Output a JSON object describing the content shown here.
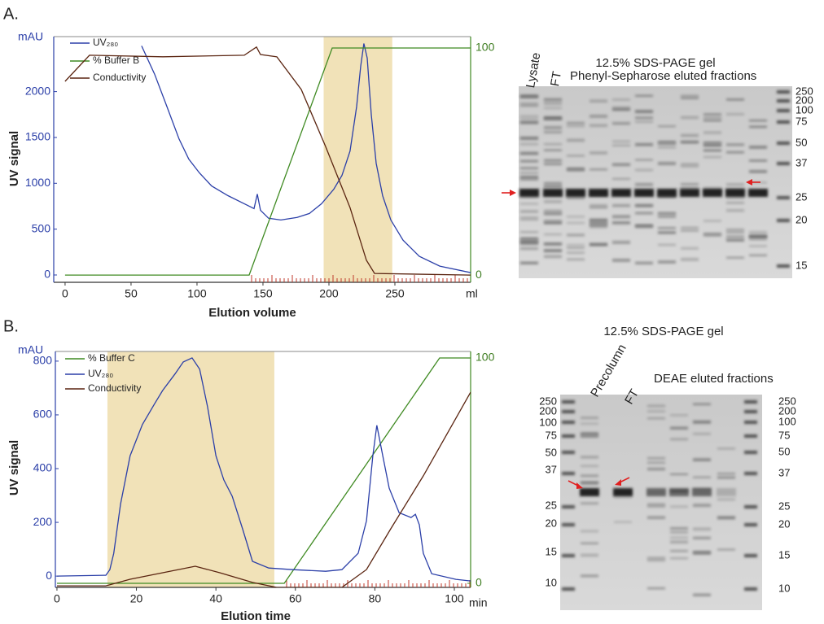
{
  "chart_data": [
    {
      "type": "line",
      "panel_label": "A.",
      "y_unit": "mAU",
      "ylabel": "UV signal",
      "xlabel": "Elution volume",
      "x_unit": "ml",
      "xlim": [
        -8.6,
        307.4
      ],
      "xticks": [
        0,
        50,
        100,
        150,
        200,
        250
      ],
      "ylim": [
        -80,
        2600
      ],
      "yticks": [
        0,
        500,
        1000,
        1500,
        2000
      ],
      "y2lim": [
        -3.2,
        105
      ],
      "y2ticks": [
        0,
        100
      ],
      "highlight": [
        196,
        248
      ],
      "highlight_color": "#f1e2b8",
      "series": [
        {
          "name": "UV₂₈₀",
          "color": "#2b3fa8",
          "x": [
            58,
            67.9,
            77.2,
            86.4,
            93.8,
            101.9,
            111.1,
            123.5,
            135.8,
            143.2,
            145.7,
            148.1,
            154.3,
            163.6,
            175.9,
            185.2,
            194.4,
            203.7,
            209.9,
            216,
            221,
            224.1,
            226.5,
            229,
            232.1,
            235.8,
            240.7,
            246.9,
            256.2,
            268.5,
            284,
            307.4
          ],
          "values": [
            2499,
            2190,
            1837,
            1484,
            1263,
            1113,
            971,
            865,
            777,
            724,
            883,
            706,
            618,
            600,
            627,
            671,
            777,
            936,
            1086,
            1351,
            1837,
            2278,
            2525,
            2366,
            1748,
            1219,
            865,
            600,
            380,
            203,
            97,
            26
          ]
        },
        {
          "name": "% Buffer B",
          "color": "#3f8a22",
          "axis": "y2",
          "x": [
            0,
            139.5,
            202.5,
            307.4
          ],
          "values": [
            0,
            0,
            100,
            100
          ]
        },
        {
          "name": "Conductivity",
          "color": "#5a2410",
          "axis": "y2",
          "x": [
            0,
            18.5,
            74.1,
            135.8,
            145.1,
            148.1,
            160.5,
            179,
            197.5,
            216,
            228.4,
            234.6,
            307.4
          ],
          "values": [
            85.3,
            96.8,
            96.1,
            96.8,
            100.4,
            97.1,
            96.1,
            81.7,
            56.6,
            29.7,
            6.5,
            0.7,
            0
          ]
        }
      ]
    },
    {
      "type": "line",
      "panel_label": "B.",
      "y_unit": "mAU",
      "ylabel": "UV signal",
      "xlabel": "Elution time",
      "x_unit": "min",
      "xlim": [
        -0.4,
        104.1
      ],
      "xticks": [
        0,
        20,
        40,
        60,
        80,
        100
      ],
      "ylim": [
        -42,
        836
      ],
      "yticks": [
        0,
        200,
        400,
        600,
        800
      ],
      "y2lim": [
        -1.8,
        102.9
      ],
      "y2ticks": [
        0,
        100
      ],
      "highlight": [
        12.7,
        54.7
      ],
      "highlight_color": "#f1e2b8",
      "series": [
        {
          "name": "% Buffer C",
          "color": "#3f8a22",
          "axis": "y2",
          "x": [
            0,
            57.2,
            96.3,
            104.1
          ],
          "values": [
            0,
            0,
            100,
            100
          ]
        },
        {
          "name": "UV₂₈₀",
          "color": "#2b3fa8",
          "x": [
            0,
            12.3,
            13.3,
            14.3,
            16,
            18.4,
            21.5,
            24.6,
            26.6,
            29.7,
            31.8,
            34,
            35.9,
            37.9,
            40,
            42,
            44.1,
            46.7,
            49.2,
            53.3,
            59.4,
            67.6,
            71.7,
            75.8,
            77.9,
            79.5,
            80.5,
            82,
            83.6,
            86.1,
            89.1,
            90.2,
            91.2,
            92.2,
            94.3,
            100.4,
            104.1
          ],
          "values": [
            0,
            3,
            24,
            85,
            267,
            448,
            564,
            642,
            691,
            752,
            797,
            812,
            770,
            630,
            448,
            358,
            297,
            176,
            55,
            30,
            24,
            18,
            24,
            85,
            206,
            448,
            561,
            448,
            327,
            236,
            218,
            230,
            191,
            85,
            9,
            -12,
            -18
          ]
        },
        {
          "name": "Conductivity",
          "color": "#5a2410",
          "axis": "y2",
          "x": [
            0,
            12.3,
            18.4,
            26.6,
            34.8,
            41,
            49.2,
            55.3,
            71.7,
            77.9,
            84,
            92.2,
            104.1
          ],
          "values": [
            -1.1,
            -1.1,
            1.8,
            4.7,
            7.6,
            4.7,
            0.4,
            -1.8,
            -1.8,
            6.1,
            24.2,
            47.7,
            84.8
          ]
        }
      ]
    }
  ],
  "gels": [
    {
      "title": "12.5% SDS-PAGE gel",
      "lanes": [
        "Lysate",
        "FT"
      ],
      "fractions": "Phenyl-Sepharose eluted fractions",
      "markers_right": [
        250,
        200,
        100,
        75,
        50,
        37,
        25,
        20,
        15
      ]
    },
    {
      "title": "12.5% SDS-PAGE gel",
      "lanes": [
        "Precolumn",
        "FT"
      ],
      "fractions": "DEAE eluted fractions",
      "markers_left": [
        250,
        200,
        100,
        75,
        50,
        37,
        25,
        20,
        15,
        10
      ],
      "markers_right": [
        250,
        200,
        100,
        75,
        50,
        37,
        25,
        20,
        15,
        10
      ]
    }
  ]
}
